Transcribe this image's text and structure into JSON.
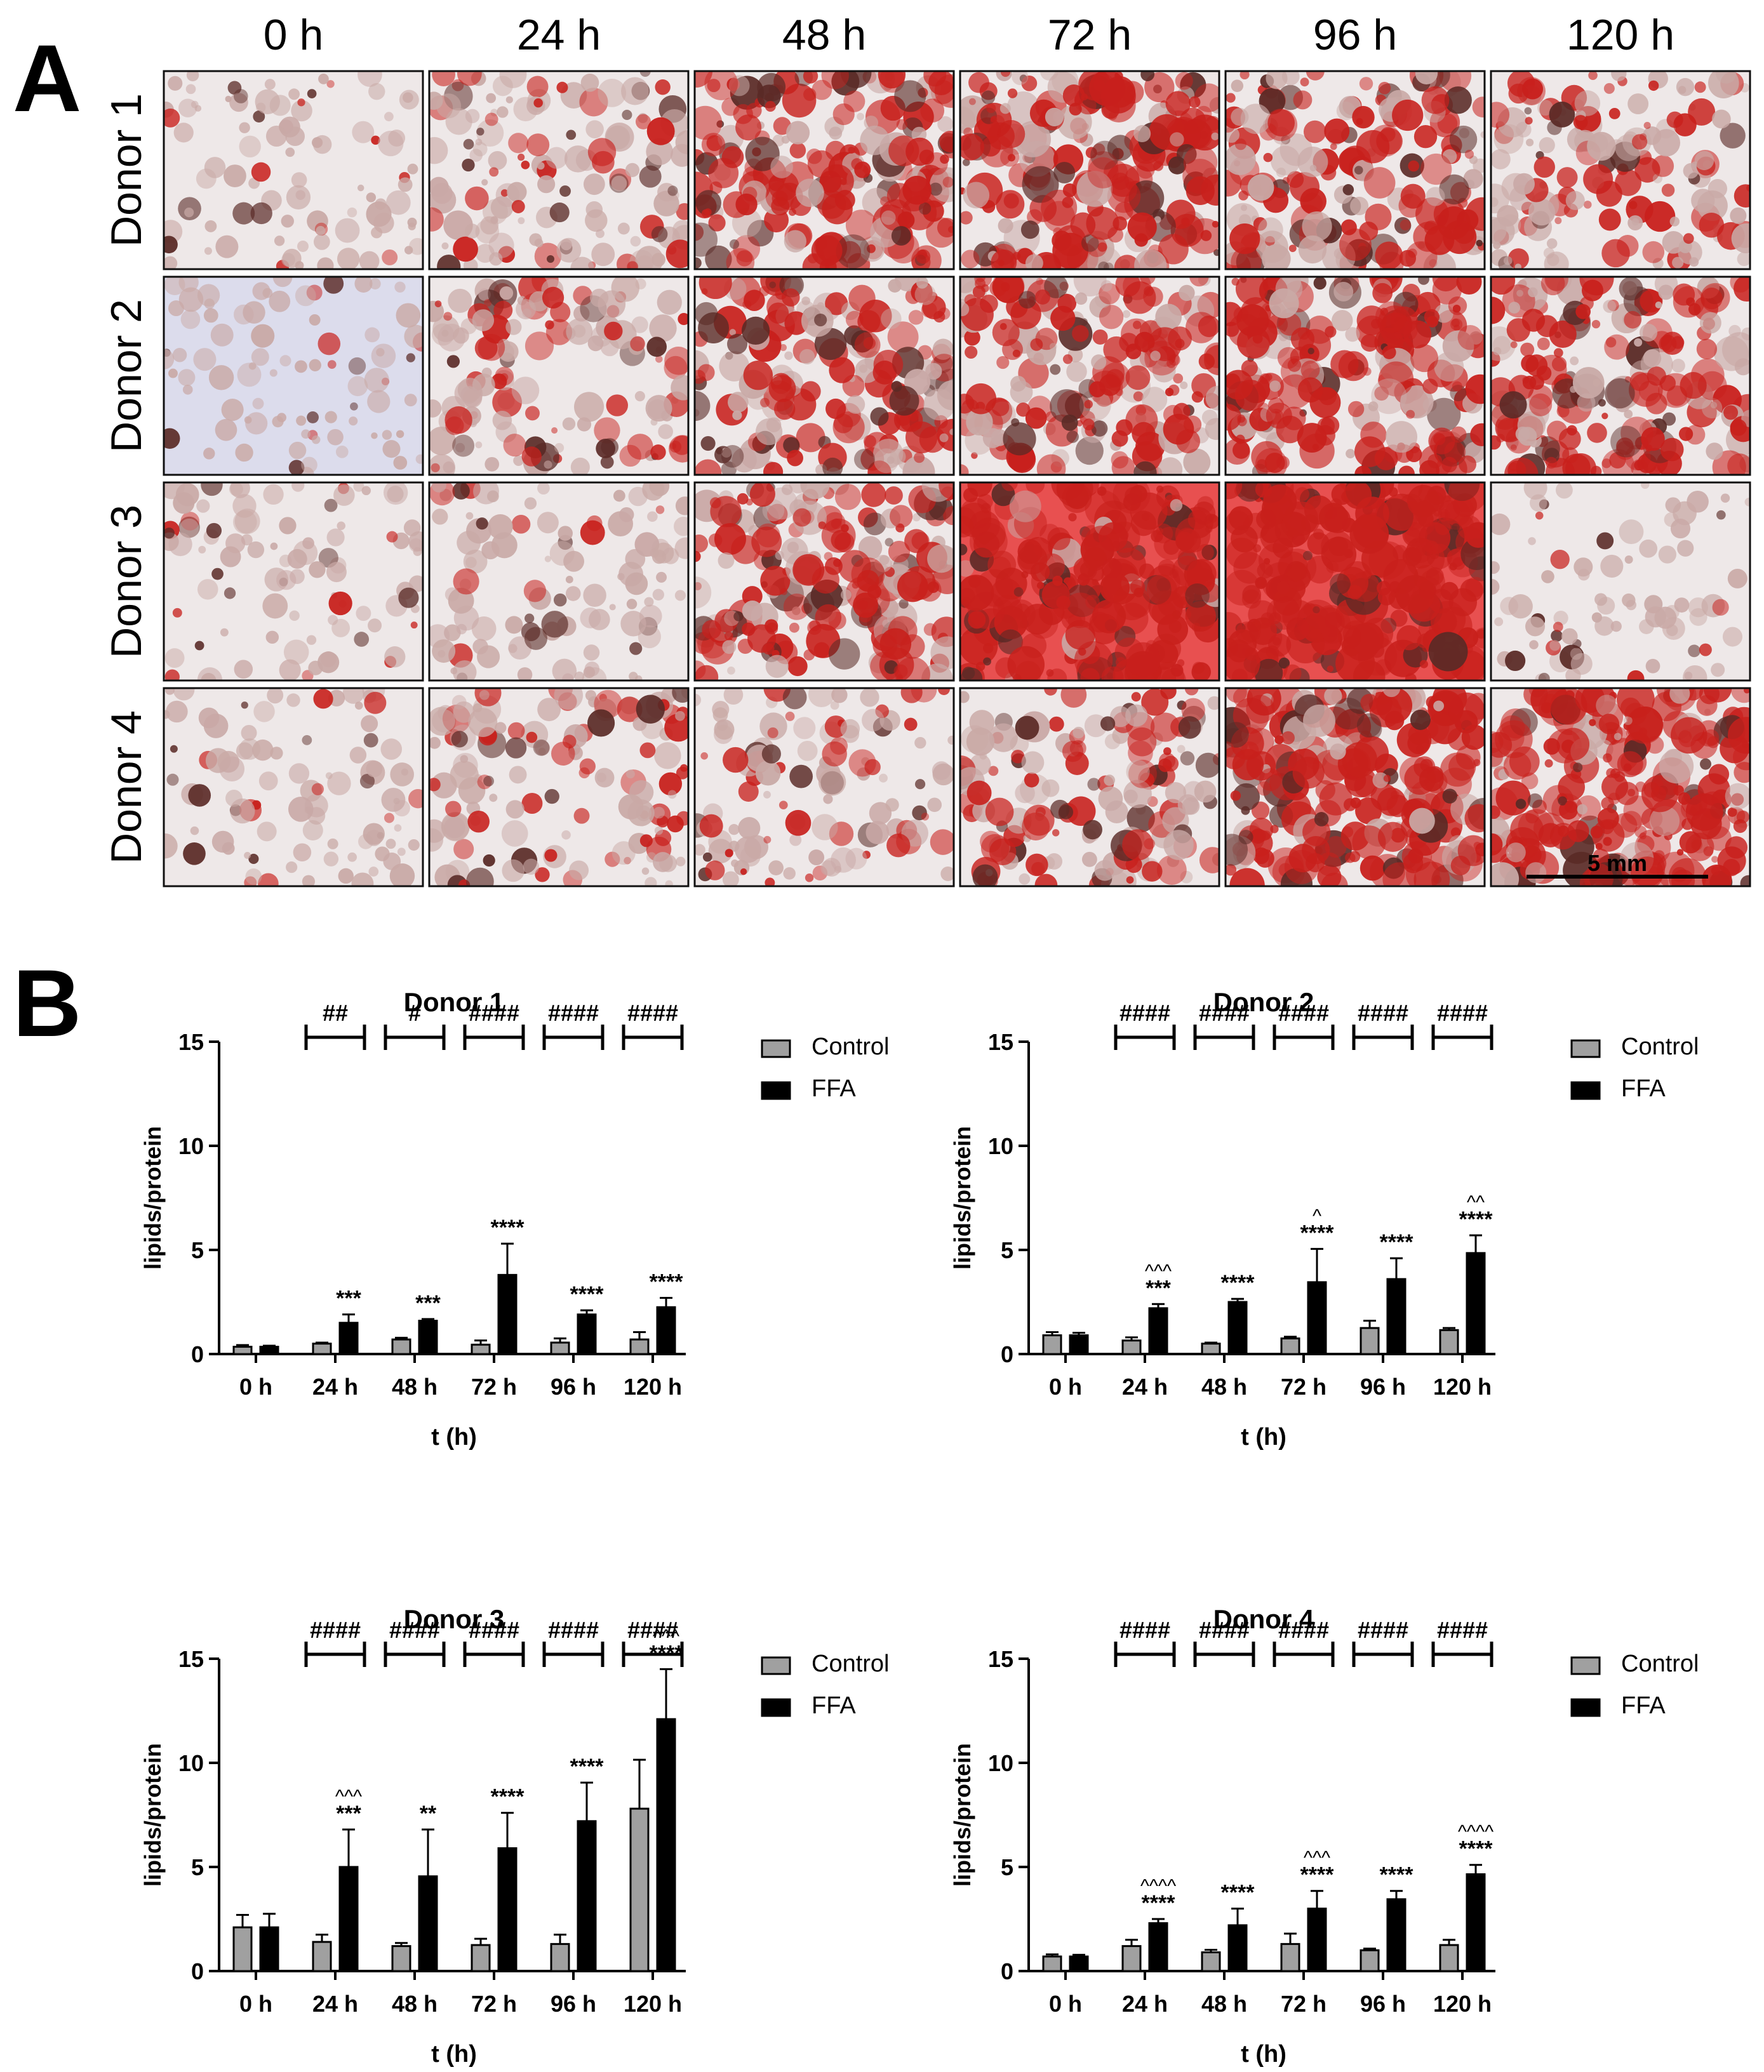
{
  "panel_a": {
    "letter": "A",
    "columns": [
      "0 h",
      "24 h",
      "48 h",
      "72 h",
      "96 h",
      "120 h"
    ],
    "rows": [
      "Donor 1",
      "Donor 2",
      "Donor 3",
      "Donor 4"
    ],
    "scale_bar": "5 mm",
    "stain_density": [
      [
        0.1,
        0.3,
        0.62,
        0.72,
        0.55,
        0.38
      ],
      [
        0.06,
        0.34,
        0.52,
        0.6,
        0.66,
        0.62
      ],
      [
        0.1,
        0.16,
        0.62,
        0.82,
        0.88,
        0.04
      ],
      [
        0.1,
        0.3,
        0.22,
        0.42,
        0.72,
        0.78
      ]
    ],
    "colors": {
      "stain": "#c8201c",
      "dark_cell": "#5a2a26",
      "background": "#ece6e6"
    }
  },
  "panel_b": {
    "letter": "B",
    "legend": [
      "Control",
      "FFA"
    ],
    "colors": {
      "control": "#a0a0a0",
      "ffa": "#000000"
    }
  },
  "chart_data": [
    {
      "type": "bar",
      "title": "Donor 1",
      "xlabel": "t (h)",
      "ylabel": "lipids/protein",
      "categories": [
        "0 h",
        "24 h",
        "48 h",
        "72 h",
        "96 h",
        "120 h"
      ],
      "ylim": [
        0,
        15
      ],
      "yticks": [
        "0",
        "5",
        "10",
        "15"
      ],
      "series": [
        {
          "name": "Control",
          "values": [
            0.35,
            0.5,
            0.7,
            0.45,
            0.55,
            0.7
          ],
          "errors": [
            0.08,
            0.05,
            0.08,
            0.2,
            0.2,
            0.35
          ]
        },
        {
          "name": "FFA",
          "values": [
            0.35,
            1.5,
            1.6,
            3.8,
            1.9,
            2.25
          ],
          "errors": [
            0.05,
            0.4,
            0.08,
            1.5,
            0.2,
            0.45
          ]
        }
      ],
      "brackets": [
        "",
        "##",
        "#",
        "####",
        "####",
        "####"
      ],
      "asterisks": [
        "",
        "***",
        "***",
        "****",
        "****",
        "****"
      ],
      "carets": [
        "",
        "",
        "",
        "",
        "",
        ""
      ]
    },
    {
      "type": "bar",
      "title": "Donor 2",
      "xlabel": "t (h)",
      "ylabel": "lipids/protein",
      "categories": [
        "0 h",
        "24 h",
        "48 h",
        "72 h",
        "96 h",
        "120 h"
      ],
      "ylim": [
        0,
        15
      ],
      "yticks": [
        "0",
        "5",
        "10",
        "15"
      ],
      "series": [
        {
          "name": "Control",
          "values": [
            0.9,
            0.65,
            0.5,
            0.75,
            1.25,
            1.15
          ],
          "errors": [
            0.15,
            0.15,
            0.05,
            0.08,
            0.35,
            0.1
          ]
        },
        {
          "name": "FFA",
          "values": [
            0.9,
            2.2,
            2.5,
            3.45,
            3.6,
            4.85
          ],
          "errors": [
            0.12,
            0.2,
            0.15,
            1.6,
            1.0,
            0.85
          ]
        }
      ],
      "brackets": [
        "",
        "####",
        "####",
        "####",
        "####",
        "####"
      ],
      "asterisks": [
        "",
        "***",
        "****",
        "****",
        "****",
        "****"
      ],
      "carets": [
        "",
        "^^^",
        "",
        "^",
        "",
        "^^"
      ]
    },
    {
      "type": "bar",
      "title": "Donor 3",
      "xlabel": "t (h)",
      "ylabel": "lipids/protein",
      "categories": [
        "0 h",
        "24 h",
        "48 h",
        "72 h",
        "96 h",
        "120 h"
      ],
      "ylim": [
        0,
        15
      ],
      "yticks": [
        "0",
        "5",
        "10",
        "15"
      ],
      "series": [
        {
          "name": "Control",
          "values": [
            2.1,
            1.4,
            1.2,
            1.25,
            1.3,
            7.8
          ],
          "errors": [
            0.6,
            0.35,
            0.15,
            0.3,
            0.45,
            2.35
          ]
        },
        {
          "name": "FFA",
          "values": [
            2.1,
            5.0,
            4.55,
            5.9,
            7.2,
            12.1
          ],
          "errors": [
            0.65,
            1.8,
            2.25,
            1.7,
            1.85,
            2.4
          ]
        }
      ],
      "brackets": [
        "",
        "####",
        "####",
        "####",
        "####",
        "####"
      ],
      "asterisks": [
        "",
        "***",
        "**",
        "****",
        "****",
        "****"
      ],
      "carets": [
        "",
        "^^^",
        "",
        "",
        "",
        "^^^"
      ]
    },
    {
      "type": "bar",
      "title": "Donor 4",
      "xlabel": "t (h)",
      "ylabel": "lipids/protein",
      "categories": [
        "0 h",
        "24 h",
        "48 h",
        "72 h",
        "96 h",
        "120 h"
      ],
      "ylim": [
        0,
        15
      ],
      "yticks": [
        "0",
        "5",
        "10",
        "15"
      ],
      "series": [
        {
          "name": "Control",
          "values": [
            0.7,
            1.2,
            0.9,
            1.3,
            1.0,
            1.25
          ],
          "errors": [
            0.1,
            0.3,
            0.12,
            0.5,
            0.08,
            0.25
          ]
        },
        {
          "name": "FFA",
          "values": [
            0.7,
            2.3,
            2.2,
            3.0,
            3.45,
            4.65
          ],
          "errors": [
            0.08,
            0.2,
            0.8,
            0.85,
            0.4,
            0.45
          ]
        }
      ],
      "brackets": [
        "",
        "####",
        "####",
        "####",
        "####",
        "####"
      ],
      "asterisks": [
        "",
        "****",
        "****",
        "****",
        "****",
        "****"
      ],
      "carets": [
        "",
        "^^^^",
        "",
        "^^^",
        "",
        "^^^^"
      ]
    }
  ]
}
